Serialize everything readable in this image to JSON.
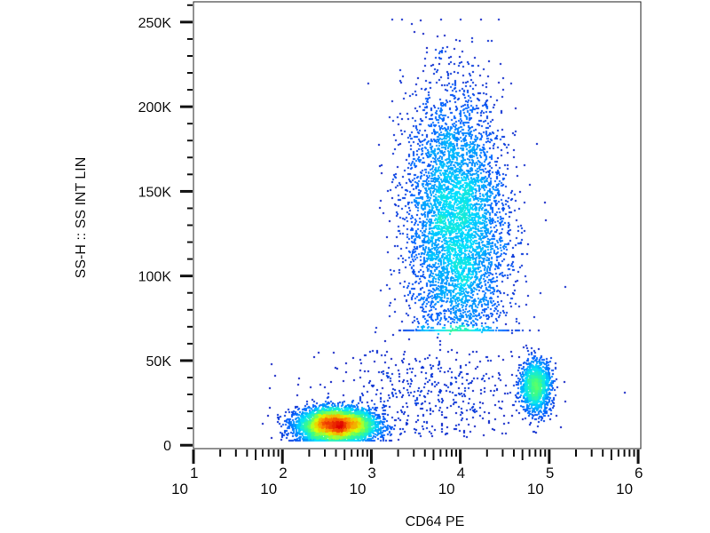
{
  "chart_data": {
    "type": "scatter",
    "subtype": "density-dot-plot",
    "xlabel": "CD64 PE",
    "ylabel": "SS-H :: SS INT LIN",
    "x_scale": "log",
    "xlim": [
      10,
      1070000
    ],
    "ylim": [
      -2000,
      262000
    ],
    "x_ticks": [
      {
        "base": "10",
        "exp": "1"
      },
      {
        "base": "10",
        "exp": "2"
      },
      {
        "base": "10",
        "exp": "3"
      },
      {
        "base": "10",
        "exp": "4"
      },
      {
        "base": "10",
        "exp": "5"
      },
      {
        "base": "10",
        "exp": "6"
      }
    ],
    "y_ticks": [
      "0",
      "50K",
      "100K",
      "150K",
      "200K",
      "250K"
    ],
    "y_tick_values": [
      0,
      50000,
      100000,
      150000,
      200000,
      250000
    ],
    "grid": false,
    "legend": "none",
    "colormap": [
      "#0000b0",
      "#0060ff",
      "#00e0ff",
      "#40ff80",
      "#e0ff00",
      "#ff8000",
      "#e00000"
    ],
    "populations": [
      {
        "x_center": 400,
        "x_log_sd": 0.22,
        "y_center": 12000,
        "y_sd": 5000,
        "count": 5000
      },
      {
        "x_center": 9000,
        "x_log_sd": 0.28,
        "y_center": 130000,
        "y_sd": 40000,
        "count": 9000
      },
      {
        "x_center": 70000,
        "x_log_sd": 0.09,
        "y_center": 35000,
        "y_sd": 8000,
        "count": 1200
      },
      {
        "x_center": 5000,
        "x_log_sd": 0.6,
        "y_center": 25000,
        "y_sd": 15000,
        "count": 500
      }
    ]
  }
}
